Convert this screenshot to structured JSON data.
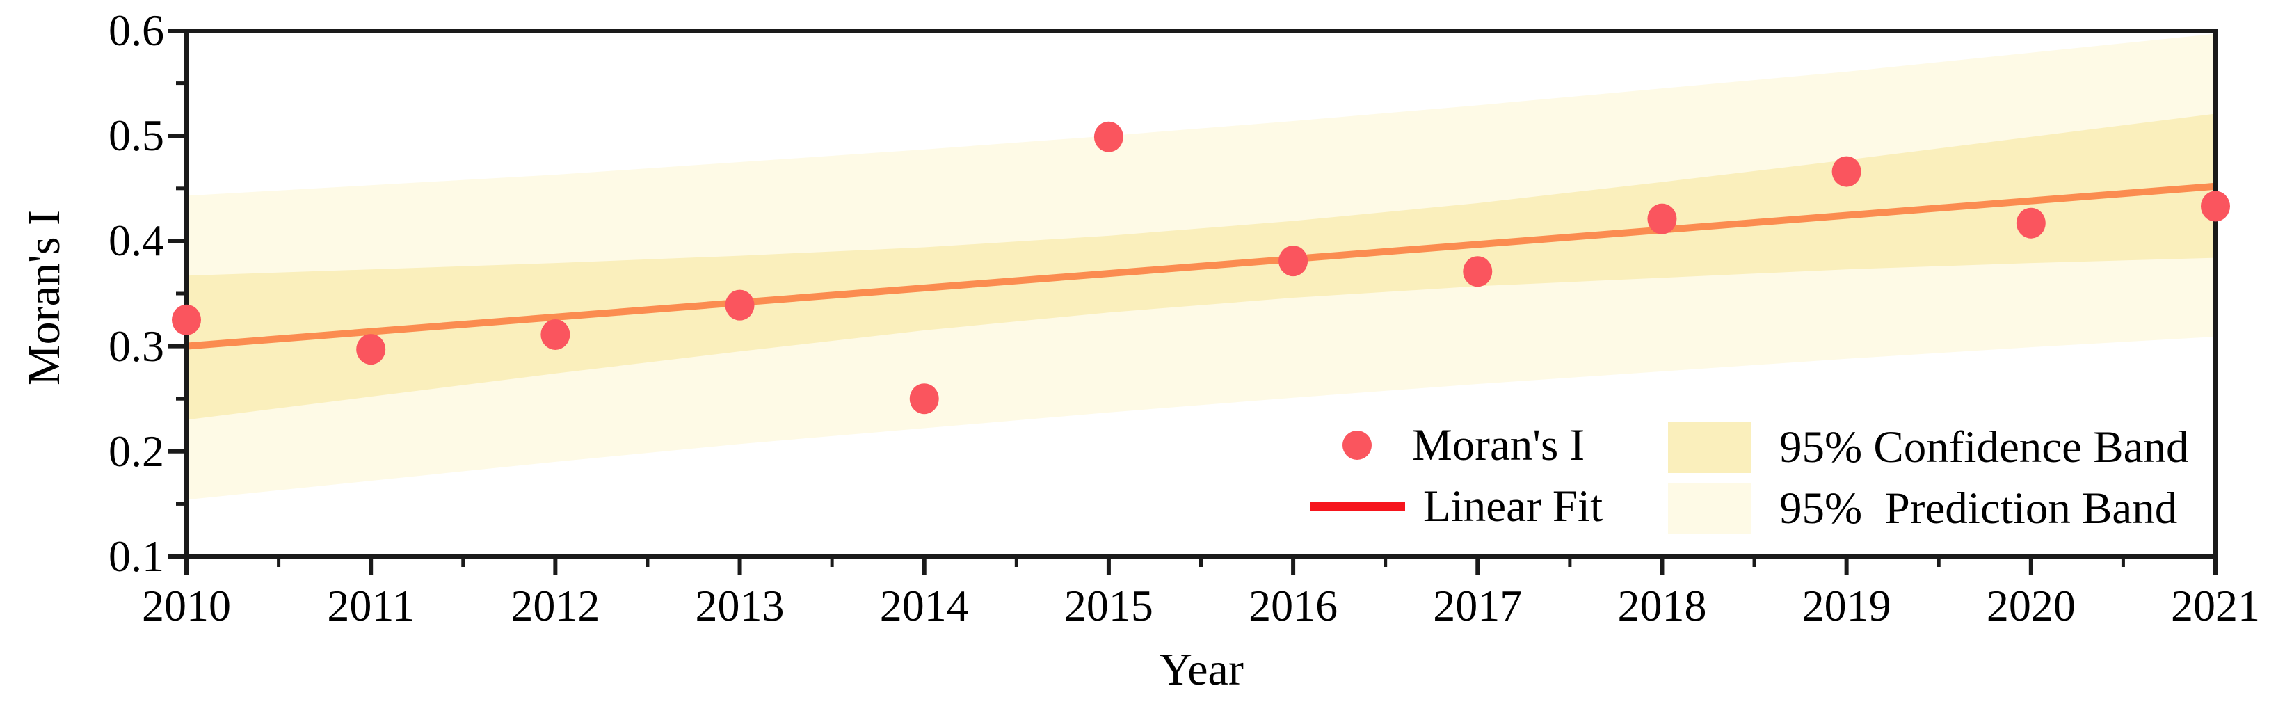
{
  "chart_data": {
    "type": "scatter",
    "title": "",
    "xlabel": "Year",
    "ylabel": "Moran's I",
    "xlim": [
      2010,
      2021
    ],
    "ylim": [
      0.1,
      0.6
    ],
    "x_ticks": [
      2010,
      2011,
      2012,
      2013,
      2014,
      2015,
      2016,
      2017,
      2018,
      2019,
      2020,
      2021
    ],
    "x_minor_tick_step": 0.5,
    "y_ticks": [
      0.1,
      0.2,
      0.3,
      0.4,
      0.5,
      0.6
    ],
    "y_minor_tick_step": 0.05,
    "grid": false,
    "legend_position": "inside-bottom-right-two-columns",
    "x": [
      2010,
      2011,
      2012,
      2013,
      2014,
      2015,
      2016,
      2017,
      2018,
      2019,
      2020,
      2021
    ],
    "series": [
      {
        "name": "Moran's I",
        "kind": "scatter",
        "color": "#fa555e",
        "values": [
          0.325,
          0.297,
          0.311,
          0.339,
          0.25,
          0.499,
          0.381,
          0.371,
          0.421,
          0.466,
          0.417,
          0.433
        ]
      },
      {
        "name": "Linear Fit",
        "kind": "line",
        "color": "#f6151d",
        "plot_color": "#fb8c50",
        "x": [
          2010,
          2021
        ],
        "y": [
          0.3,
          0.452
        ]
      },
      {
        "name": "95% Confidence Band",
        "kind": "band",
        "color": "#faefbc",
        "upper": [
          0.367,
          0.373,
          0.379,
          0.386,
          0.394,
          0.405,
          0.419,
          0.436,
          0.456,
          0.477,
          0.499,
          0.521
        ],
        "lower": [
          0.23,
          0.252,
          0.274,
          0.295,
          0.315,
          0.332,
          0.346,
          0.357,
          0.365,
          0.373,
          0.379,
          0.384
        ]
      },
      {
        "name": "95%  Prediction Band",
        "kind": "band",
        "color": "#fefae6",
        "upper": [
          0.443,
          0.453,
          0.463,
          0.475,
          0.487,
          0.5,
          0.514,
          0.529,
          0.545,
          0.561,
          0.579,
          0.597
        ],
        "lower": [
          0.154,
          0.172,
          0.19,
          0.207,
          0.222,
          0.237,
          0.251,
          0.264,
          0.276,
          0.288,
          0.299,
          0.309
        ]
      }
    ],
    "legend": {
      "items": [
        {
          "label": "Moran's I",
          "symbol": "dot"
        },
        {
          "label": "Linear Fit",
          "symbol": "line"
        },
        {
          "label": "95% Confidence Band",
          "symbol": "swatch"
        },
        {
          "label": "95%  Prediction Band",
          "symbol": "swatch"
        }
      ]
    }
  },
  "colors": {
    "background": "#ffffff",
    "axis": "#1a1a1a",
    "text": "#000000"
  }
}
